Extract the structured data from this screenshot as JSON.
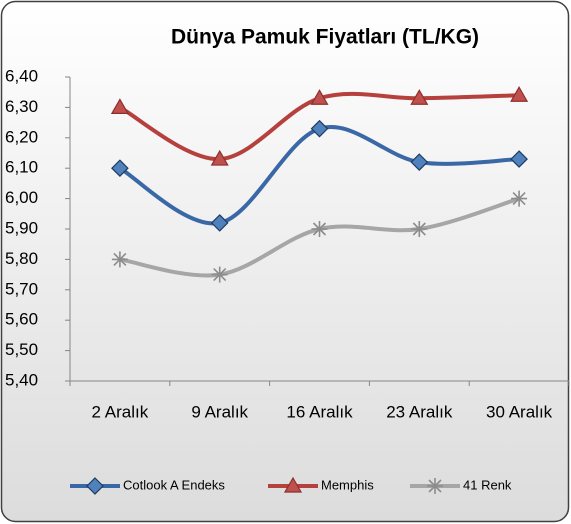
{
  "chart_data": {
    "type": "line",
    "title": "Dünya Pamuk Fiyatları (TL/KG)",
    "categories": [
      "2 Aralık",
      "9 Aralık",
      "16 Aralık",
      "23 Aralık",
      "30 Aralık"
    ],
    "series": [
      {
        "name": "Cotlook A Endeks",
        "color": "#3a68a6",
        "values": [
          6.1,
          5.92,
          6.23,
          6.12,
          6.13
        ]
      },
      {
        "name": "Memphis",
        "color": "#b5403c",
        "values": [
          6.3,
          6.13,
          6.33,
          6.33,
          6.34
        ]
      },
      {
        "name": "41 Renk",
        "color": "#a6a6a6",
        "values": [
          5.8,
          5.75,
          5.9,
          5.9,
          6.0
        ]
      }
    ],
    "ylim": [
      5.4,
      6.4
    ],
    "yticks": [
      {
        "value": 5.4,
        "label": "5,40"
      },
      {
        "value": 5.5,
        "label": "5,50"
      },
      {
        "value": 5.6,
        "label": "5,60"
      },
      {
        "value": 5.7,
        "label": "5,70"
      },
      {
        "value": 5.8,
        "label": "5,80"
      },
      {
        "value": 5.9,
        "label": "5,90"
      },
      {
        "value": 6.0,
        "label": "6,00"
      },
      {
        "value": 6.1,
        "label": "6,10"
      },
      {
        "value": 6.2,
        "label": "6,20"
      },
      {
        "value": 6.3,
        "label": "6,30"
      },
      {
        "value": 6.4,
        "label": "6,40"
      }
    ],
    "grid": false,
    "legend": "bottom"
  }
}
